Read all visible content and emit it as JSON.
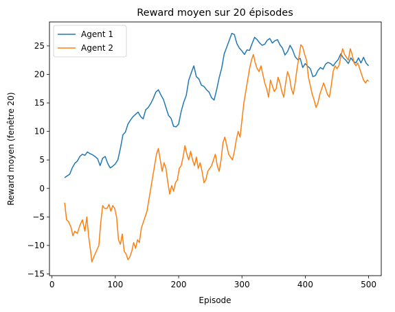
{
  "chart_data": {
    "type": "line",
    "title": "Reward moyen sur 20 épisodes",
    "xlabel": "Episode",
    "ylabel": "Reward moyen (fenêtre 20)",
    "xlim": [
      -4,
      520
    ],
    "ylim": [
      -15.3,
      29.2
    ],
    "xticks": [
      0,
      100,
      200,
      300,
      400,
      500
    ],
    "yticks": [
      -15,
      -10,
      -5,
      0,
      5,
      10,
      15,
      20,
      25
    ],
    "legend": "top-left",
    "grid": false,
    "series": [
      {
        "name": "Agent 1",
        "color": "#1f77b4",
        "points": [
          [
            20,
            1.9
          ],
          [
            24,
            2.2
          ],
          [
            28,
            2.5
          ],
          [
            32,
            3.6
          ],
          [
            36,
            4.4
          ],
          [
            40,
            4.8
          ],
          [
            44,
            5.6
          ],
          [
            48,
            6.0
          ],
          [
            52,
            5.8
          ],
          [
            56,
            6.4
          ],
          [
            60,
            6.1
          ],
          [
            64,
            5.9
          ],
          [
            68,
            5.6
          ],
          [
            72,
            5.2
          ],
          [
            76,
            4.0
          ],
          [
            80,
            5.3
          ],
          [
            84,
            5.6
          ],
          [
            88,
            4.4
          ],
          [
            92,
            3.6
          ],
          [
            96,
            3.9
          ],
          [
            100,
            4.3
          ],
          [
            104,
            5.0
          ],
          [
            108,
            7.0
          ],
          [
            112,
            9.4
          ],
          [
            116,
            9.9
          ],
          [
            120,
            11.3
          ],
          [
            124,
            12.0
          ],
          [
            128,
            12.6
          ],
          [
            132,
            13.0
          ],
          [
            136,
            13.4
          ],
          [
            140,
            12.6
          ],
          [
            144,
            12.2
          ],
          [
            148,
            13.8
          ],
          [
            152,
            14.2
          ],
          [
            156,
            14.9
          ],
          [
            160,
            15.8
          ],
          [
            164,
            16.9
          ],
          [
            168,
            17.3
          ],
          [
            172,
            16.4
          ],
          [
            176,
            15.6
          ],
          [
            180,
            14.2
          ],
          [
            184,
            12.8
          ],
          [
            188,
            12.3
          ],
          [
            192,
            10.9
          ],
          [
            196,
            10.8
          ],
          [
            200,
            11.3
          ],
          [
            204,
            13.5
          ],
          [
            208,
            15.1
          ],
          [
            212,
            16.3
          ],
          [
            216,
            19.0
          ],
          [
            220,
            20.3
          ],
          [
            224,
            21.5
          ],
          [
            228,
            19.6
          ],
          [
            232,
            19.2
          ],
          [
            236,
            18.1
          ],
          [
            240,
            17.9
          ],
          [
            244,
            17.3
          ],
          [
            248,
            16.9
          ],
          [
            252,
            15.9
          ],
          [
            256,
            15.5
          ],
          [
            260,
            17.3
          ],
          [
            264,
            19.4
          ],
          [
            268,
            21.1
          ],
          [
            272,
            23.6
          ],
          [
            276,
            24.8
          ],
          [
            280,
            26.0
          ],
          [
            284,
            27.2
          ],
          [
            288,
            27.0
          ],
          [
            292,
            25.4
          ],
          [
            296,
            24.6
          ],
          [
            300,
            24.1
          ],
          [
            304,
            23.5
          ],
          [
            308,
            24.3
          ],
          [
            312,
            24.2
          ],
          [
            316,
            25.4
          ],
          [
            320,
            26.5
          ],
          [
            324,
            26.1
          ],
          [
            328,
            25.5
          ],
          [
            332,
            25.1
          ],
          [
            336,
            25.3
          ],
          [
            340,
            26.0
          ],
          [
            344,
            26.3
          ],
          [
            348,
            25.5
          ],
          [
            352,
            25.9
          ],
          [
            356,
            26.1
          ],
          [
            360,
            25.2
          ],
          [
            364,
            24.6
          ],
          [
            368,
            23.4
          ],
          [
            372,
            24.0
          ],
          [
            376,
            25.1
          ],
          [
            380,
            24.3
          ],
          [
            384,
            23.1
          ],
          [
            388,
            22.6
          ],
          [
            392,
            22.8
          ],
          [
            396,
            21.2
          ],
          [
            400,
            21.9
          ],
          [
            404,
            21.4
          ],
          [
            408,
            21.0
          ],
          [
            412,
            19.6
          ],
          [
            416,
            19.8
          ],
          [
            420,
            20.7
          ],
          [
            424,
            21.2
          ],
          [
            428,
            20.9
          ],
          [
            432,
            21.8
          ],
          [
            436,
            22.1
          ],
          [
            440,
            21.9
          ],
          [
            444,
            21.5
          ],
          [
            448,
            22.1
          ],
          [
            452,
            22.6
          ],
          [
            456,
            23.6
          ],
          [
            460,
            22.9
          ],
          [
            464,
            22.5
          ],
          [
            468,
            21.9
          ],
          [
            472,
            22.9
          ],
          [
            476,
            22.3
          ],
          [
            480,
            22.0
          ],
          [
            484,
            22.9
          ],
          [
            488,
            22.0
          ],
          [
            492,
            23.0
          ],
          [
            496,
            22.0
          ],
          [
            500,
            21.5
          ]
        ]
      },
      {
        "name": "Agent 2",
        "color": "#ff7f0e",
        "points": [
          [
            20,
            -2.5
          ],
          [
            23,
            -5.5
          ],
          [
            26,
            -5.8
          ],
          [
            30,
            -6.8
          ],
          [
            33,
            -8.3
          ],
          [
            36,
            -7.5
          ],
          [
            40,
            -7.9
          ],
          [
            44,
            -6.5
          ],
          [
            48,
            -5.5
          ],
          [
            52,
            -7.5
          ],
          [
            55,
            -5.0
          ],
          [
            58,
            -8.5
          ],
          [
            61,
            -11.0
          ],
          [
            63,
            -12.9
          ],
          [
            66,
            -12.0
          ],
          [
            70,
            -11.0
          ],
          [
            74,
            -10.0
          ],
          [
            77,
            -6.0
          ],
          [
            80,
            -3.0
          ],
          [
            83,
            -3.5
          ],
          [
            87,
            -3.5
          ],
          [
            90,
            -2.8
          ],
          [
            93,
            -4.0
          ],
          [
            96,
            -3.0
          ],
          [
            99,
            -3.5
          ],
          [
            102,
            -5.0
          ],
          [
            105,
            -9.0
          ],
          [
            108,
            -9.8
          ],
          [
            111,
            -8.0
          ],
          [
            114,
            -11.0
          ],
          [
            117,
            -11.5
          ],
          [
            120,
            -12.5
          ],
          [
            123,
            -12.0
          ],
          [
            126,
            -11.0
          ],
          [
            129,
            -9.5
          ],
          [
            132,
            -10.5
          ],
          [
            135,
            -9.0
          ],
          [
            138,
            -9.5
          ],
          [
            141,
            -7.0
          ],
          [
            144,
            -6.0
          ],
          [
            147,
            -5.0
          ],
          [
            150,
            -4.0
          ],
          [
            153,
            -2.0
          ],
          [
            156,
            0.0
          ],
          [
            159,
            2.0
          ],
          [
            162,
            4.0
          ],
          [
            165,
            6.0
          ],
          [
            168,
            7.0
          ],
          [
            171,
            5.0
          ],
          [
            174,
            3.0
          ],
          [
            177,
            4.5
          ],
          [
            180,
            3.5
          ],
          [
            183,
            1.0
          ],
          [
            186,
            -1.0
          ],
          [
            189,
            0.5
          ],
          [
            192,
            -0.5
          ],
          [
            195,
            1.0
          ],
          [
            198,
            1.5
          ],
          [
            201,
            3.5
          ],
          [
            204,
            4.0
          ],
          [
            207,
            5.5
          ],
          [
            210,
            7.5
          ],
          [
            213,
            6.0
          ],
          [
            216,
            5.0
          ],
          [
            219,
            6.5
          ],
          [
            222,
            5.0
          ],
          [
            225,
            4.0
          ],
          [
            228,
            5.5
          ],
          [
            231,
            3.5
          ],
          [
            234,
            4.5
          ],
          [
            237,
            3.0
          ],
          [
            240,
            1.0
          ],
          [
            243,
            1.5
          ],
          [
            246,
            3.0
          ],
          [
            249,
            3.5
          ],
          [
            252,
            4.0
          ],
          [
            255,
            5.0
          ],
          [
            258,
            6.0
          ],
          [
            261,
            4.0
          ],
          [
            264,
            3.0
          ],
          [
            267,
            5.0
          ],
          [
            270,
            8.0
          ],
          [
            273,
            9.0
          ],
          [
            276,
            7.5
          ],
          [
            279,
            6.0
          ],
          [
            282,
            5.5
          ],
          [
            285,
            5.0
          ],
          [
            288,
            6.5
          ],
          [
            291,
            8.5
          ],
          [
            294,
            10.0
          ],
          [
            297,
            9.0
          ],
          [
            300,
            12.0
          ],
          [
            303,
            15.0
          ],
          [
            306,
            17.0
          ],
          [
            309,
            19.0
          ],
          [
            312,
            21.0
          ],
          [
            315,
            22.5
          ],
          [
            318,
            23.5
          ],
          [
            321,
            22.0
          ],
          [
            324,
            21.0
          ],
          [
            327,
            20.5
          ],
          [
            330,
            21.5
          ],
          [
            333,
            20.0
          ],
          [
            336,
            18.5
          ],
          [
            339,
            17.5
          ],
          [
            342,
            16.0
          ],
          [
            345,
            19.0
          ],
          [
            348,
            18.0
          ],
          [
            351,
            17.0
          ],
          [
            354,
            17.5
          ],
          [
            357,
            19.5
          ],
          [
            360,
            18.5
          ],
          [
            363,
            17.0
          ],
          [
            366,
            16.0
          ],
          [
            369,
            18.5
          ],
          [
            372,
            20.5
          ],
          [
            375,
            19.5
          ],
          [
            378,
            17.5
          ],
          [
            381,
            16.5
          ],
          [
            384,
            18.5
          ],
          [
            387,
            21.0
          ],
          [
            390,
            23.0
          ],
          [
            393,
            25.2
          ],
          [
            396,
            24.8
          ],
          [
            399,
            23.5
          ],
          [
            402,
            22.5
          ],
          [
            405,
            19.5
          ],
          [
            408,
            18.0
          ],
          [
            411,
            16.5
          ],
          [
            414,
            15.5
          ],
          [
            417,
            14.2
          ],
          [
            420,
            15.0
          ],
          [
            423,
            16.5
          ],
          [
            426,
            17.5
          ],
          [
            429,
            18.5
          ],
          [
            432,
            17.5
          ],
          [
            435,
            16.5
          ],
          [
            438,
            16.0
          ],
          [
            441,
            18.0
          ],
          [
            444,
            20.5
          ],
          [
            447,
            21.5
          ],
          [
            450,
            21.0
          ],
          [
            453,
            21.5
          ],
          [
            456,
            23.0
          ],
          [
            459,
            24.5
          ],
          [
            462,
            23.5
          ],
          [
            465,
            23.0
          ],
          [
            468,
            22.5
          ],
          [
            471,
            24.5
          ],
          [
            474,
            23.5
          ],
          [
            477,
            22.0
          ],
          [
            480,
            21.5
          ],
          [
            483,
            22.0
          ],
          [
            486,
            21.0
          ],
          [
            489,
            20.0
          ],
          [
            492,
            19.0
          ],
          [
            495,
            18.5
          ],
          [
            498,
            19.0
          ],
          [
            500,
            18.8
          ]
        ]
      }
    ]
  }
}
